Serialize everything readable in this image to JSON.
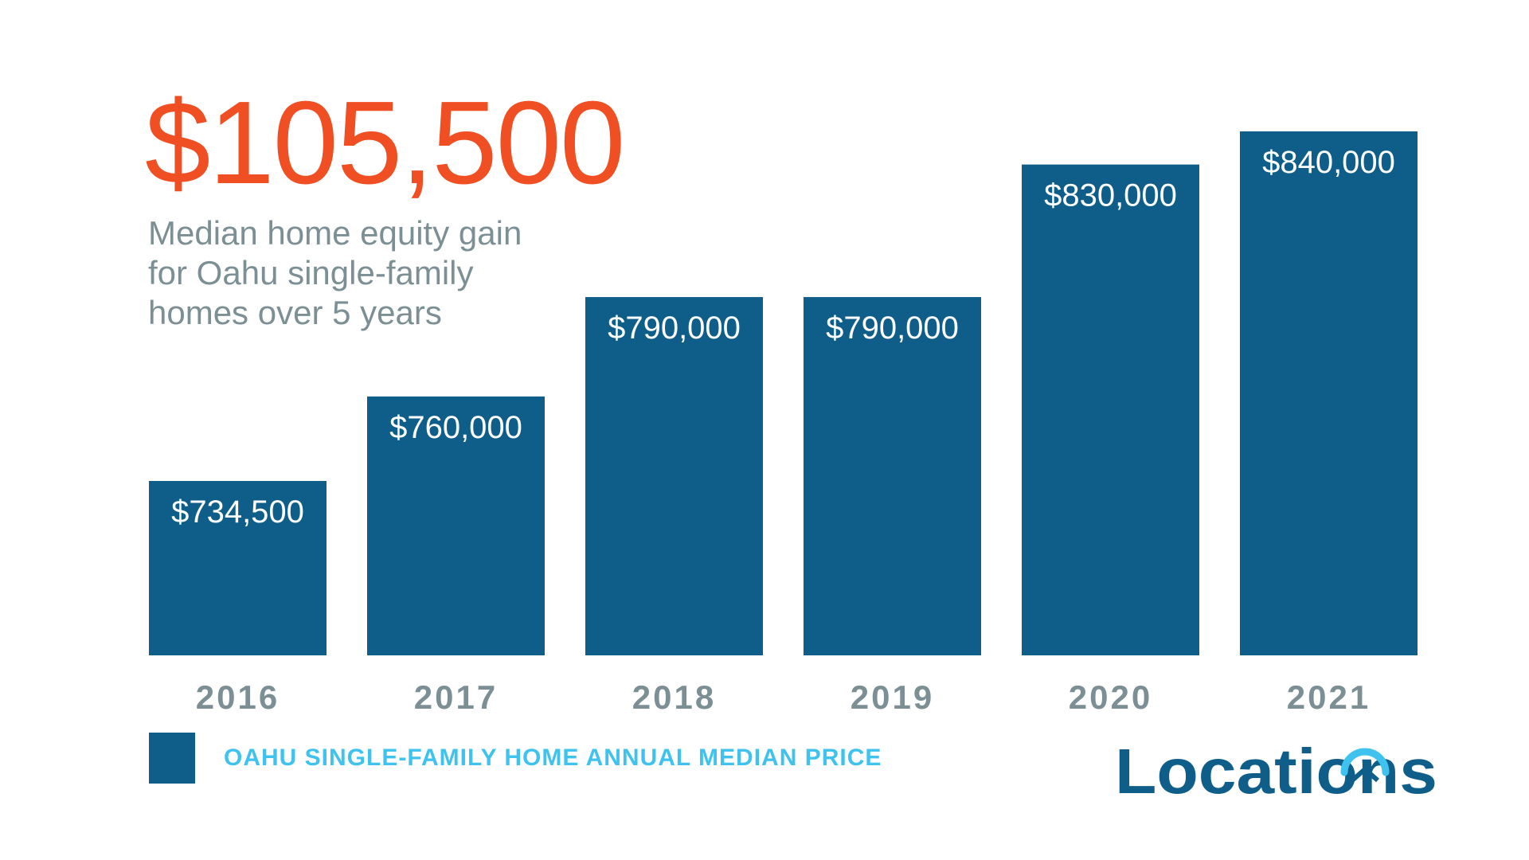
{
  "headline": {
    "value": "$105,500",
    "subtitle": "Median home equity gain\nfor Oahu single-family\nhomes over 5 years"
  },
  "legend": {
    "label": "OAHU SINGLE-FAMILY HOME ANNUAL MEDIAN PRICE"
  },
  "brand": {
    "name": "Locations"
  },
  "colors": {
    "headline": "#f04f23",
    "subtitle": "#7b8f94",
    "bar": "#0f5e8a",
    "bar_label": "#ffffff",
    "category_label": "#7b8f94",
    "legend_text": "#3fc3ee",
    "brand": "#0f5e8a",
    "brand_accent": "#3fc3ee"
  },
  "chart_data": {
    "type": "bar",
    "categories": [
      "2016",
      "2017",
      "2018",
      "2019",
      "2020",
      "2021"
    ],
    "values": [
      734500,
      760000,
      790000,
      790000,
      830000,
      840000
    ],
    "value_labels": [
      "$734,500",
      "$760,000",
      "$790,000",
      "$790,000",
      "$830,000",
      "$840,000"
    ],
    "series": [
      {
        "name": "OAHU SINGLE-FAMILY HOME ANNUAL MEDIAN PRICE",
        "values": [
          734500,
          760000,
          790000,
          790000,
          830000,
          840000
        ]
      }
    ],
    "title": "",
    "xlabel": "",
    "ylabel": "",
    "grid": false,
    "legend_position": "bottom-left"
  }
}
